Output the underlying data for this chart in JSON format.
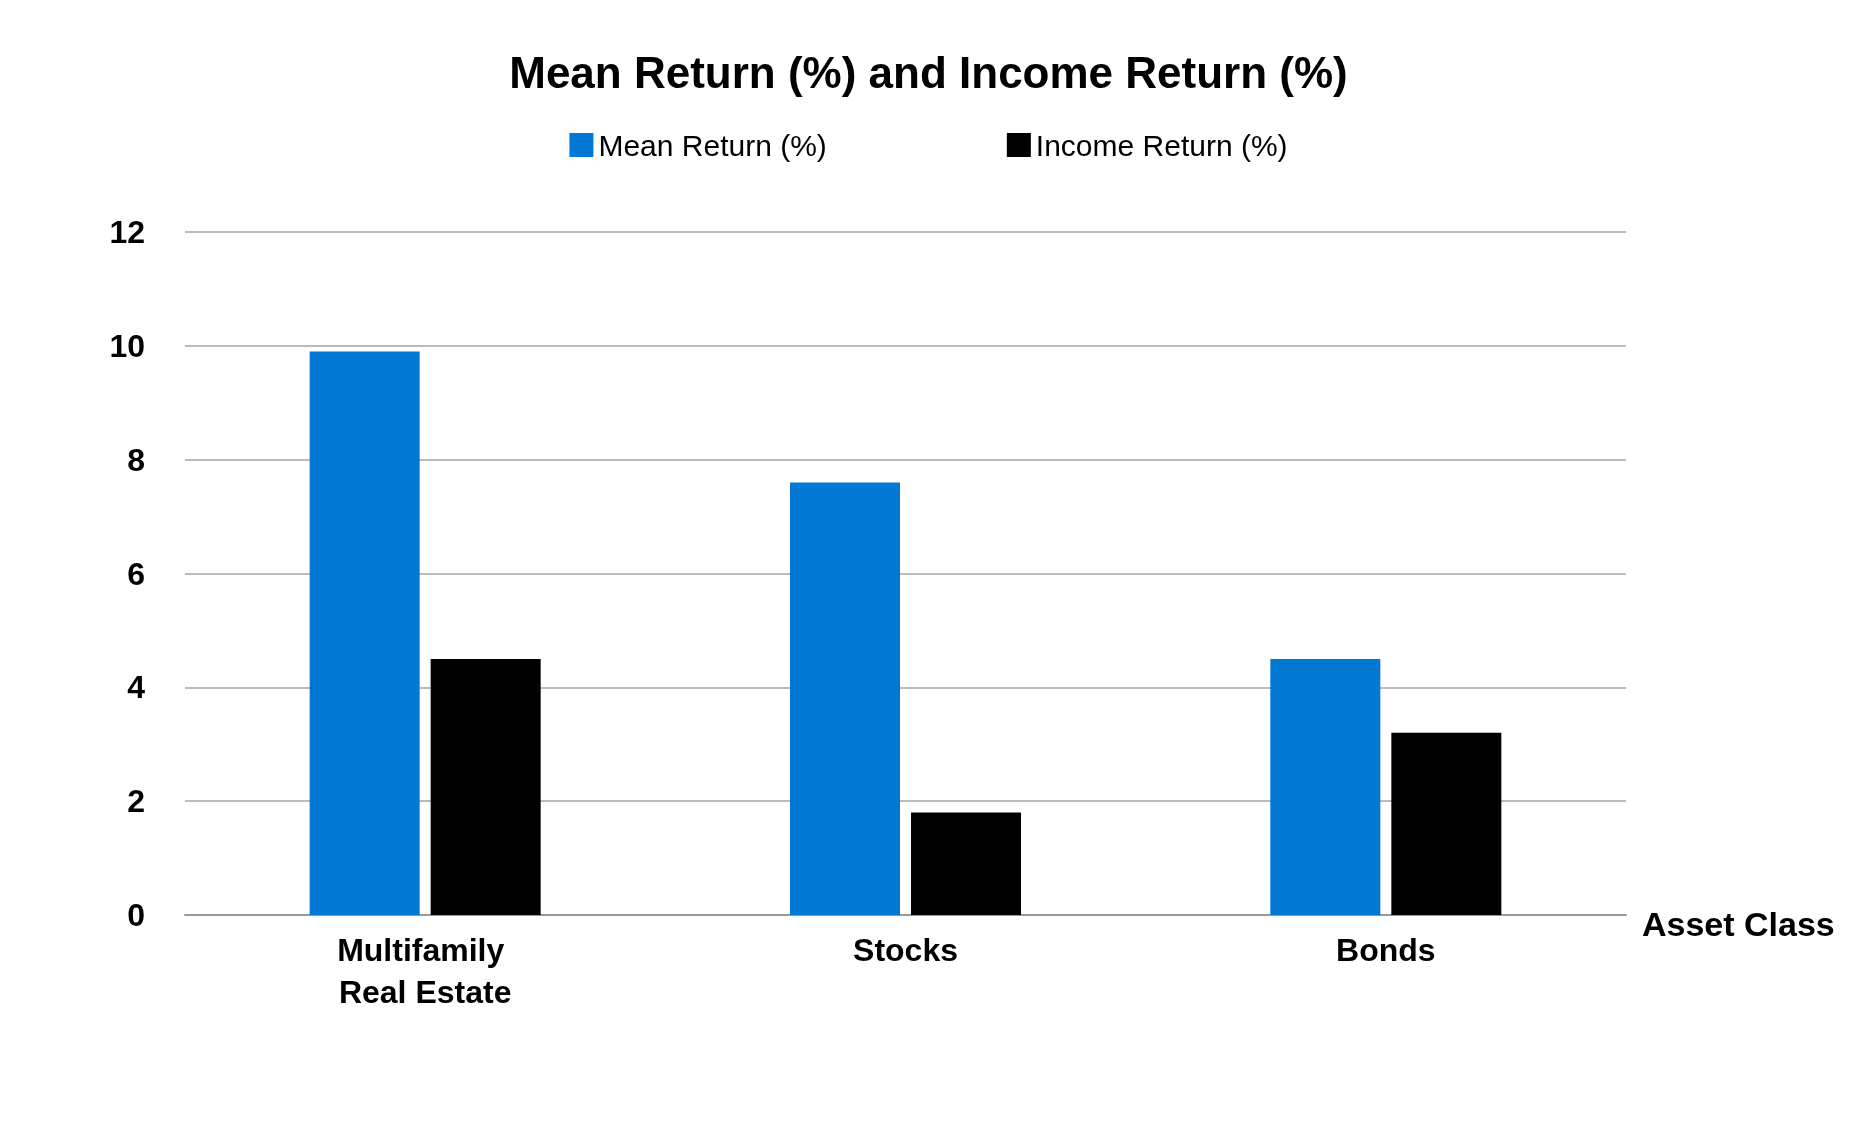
{
  "chart_data": {
    "type": "bar",
    "title": "Mean Return (%) and Income Return (%)",
    "categories": [
      "Multifamily Real Estate",
      "Stocks",
      "Bonds"
    ],
    "series": [
      {
        "name": "Mean Return (%)",
        "color": "#0078d4",
        "values": [
          9.9,
          7.6,
          4.5
        ]
      },
      {
        "name": "Income Return (%)",
        "color": "#000000",
        "values": [
          4.5,
          1.8,
          3.2
        ]
      }
    ],
    "xlabel": "Asset Class",
    "ylim": [
      0,
      12
    ],
    "yticks": [
      0,
      2,
      4,
      6,
      8,
      10,
      12
    ],
    "grid": "y",
    "legend": "top"
  }
}
